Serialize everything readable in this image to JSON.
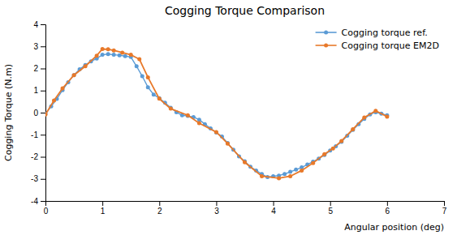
{
  "chart_data": {
    "type": "line",
    "title": "Cogging Torque Comparison",
    "xlabel": "Angular position (deg)",
    "ylabel": "Cogging Torque (N.m)",
    "xlim": [
      0,
      7
    ],
    "ylim": [
      -4,
      4
    ],
    "xticks": [
      0,
      1,
      2,
      3,
      4,
      5,
      6,
      7
    ],
    "yticks": [
      -4,
      -3,
      -2,
      -1,
      0,
      1,
      2,
      3,
      4
    ],
    "grid": false,
    "legend": "upper right",
    "series": [
      {
        "name": "Cogging torque ref.",
        "color": "#5B9BD5",
        "marker": "circle",
        "line_style": "solid",
        "x": [
          0.0,
          0.1,
          0.2,
          0.3,
          0.4,
          0.5,
          0.6,
          0.7,
          0.8,
          0.9,
          1.0,
          1.1,
          1.2,
          1.3,
          1.4,
          1.5,
          1.6,
          1.7,
          1.8,
          1.9,
          2.0,
          2.1,
          2.2,
          2.3,
          2.4,
          2.5,
          2.6,
          2.7,
          2.8,
          2.9,
          3.0,
          3.1,
          3.2,
          3.3,
          3.4,
          3.5,
          3.6,
          3.7,
          3.8,
          3.9,
          4.0,
          4.1,
          4.2,
          4.3,
          4.4,
          4.5,
          4.6,
          4.7,
          4.8,
          4.9,
          5.0,
          5.1,
          5.2,
          5.3,
          5.4,
          5.5,
          5.6,
          5.7,
          5.8,
          5.9,
          6.0
        ],
        "values": [
          -0.05,
          0.28,
          0.62,
          1.02,
          1.38,
          1.7,
          1.96,
          2.16,
          2.32,
          2.45,
          2.62,
          2.65,
          2.62,
          2.6,
          2.56,
          2.52,
          2.1,
          1.65,
          1.15,
          0.82,
          0.65,
          0.45,
          0.22,
          0.02,
          -0.12,
          -0.15,
          -0.2,
          -0.32,
          -0.52,
          -0.72,
          -0.9,
          -1.08,
          -1.38,
          -1.68,
          -1.98,
          -2.2,
          -2.45,
          -2.62,
          -2.78,
          -2.92,
          -2.88,
          -2.85,
          -2.78,
          -2.68,
          -2.58,
          -2.48,
          -2.35,
          -2.22,
          -2.08,
          -1.92,
          -1.72,
          -1.52,
          -1.32,
          -1.05,
          -0.78,
          -0.52,
          -0.28,
          -0.08,
          0.02,
          -0.05,
          -0.12
        ]
      },
      {
        "name": "Cogging torque EM2D",
        "color": "#E8792A",
        "marker": "circle",
        "line_style": "solid",
        "x": [
          0.0,
          0.15,
          0.3,
          0.5,
          0.7,
          0.9,
          1.0,
          1.1,
          1.2,
          1.35,
          1.5,
          1.65,
          1.8,
          2.0,
          2.2,
          2.5,
          2.7,
          3.0,
          3.2,
          3.5,
          3.8,
          4.1,
          4.3,
          4.5,
          4.7,
          4.9,
          5.05,
          5.2,
          5.4,
          5.6,
          5.8,
          6.0
        ],
        "values": [
          -0.08,
          0.55,
          1.1,
          1.7,
          2.1,
          2.58,
          2.88,
          2.87,
          2.82,
          2.72,
          2.62,
          2.42,
          1.6,
          0.63,
          0.18,
          -0.12,
          -0.48,
          -0.88,
          -1.4,
          -2.25,
          -2.88,
          -2.97,
          -2.88,
          -2.62,
          -2.28,
          -1.88,
          -1.62,
          -1.28,
          -0.75,
          -0.22,
          0.08,
          -0.18
        ]
      }
    ]
  }
}
